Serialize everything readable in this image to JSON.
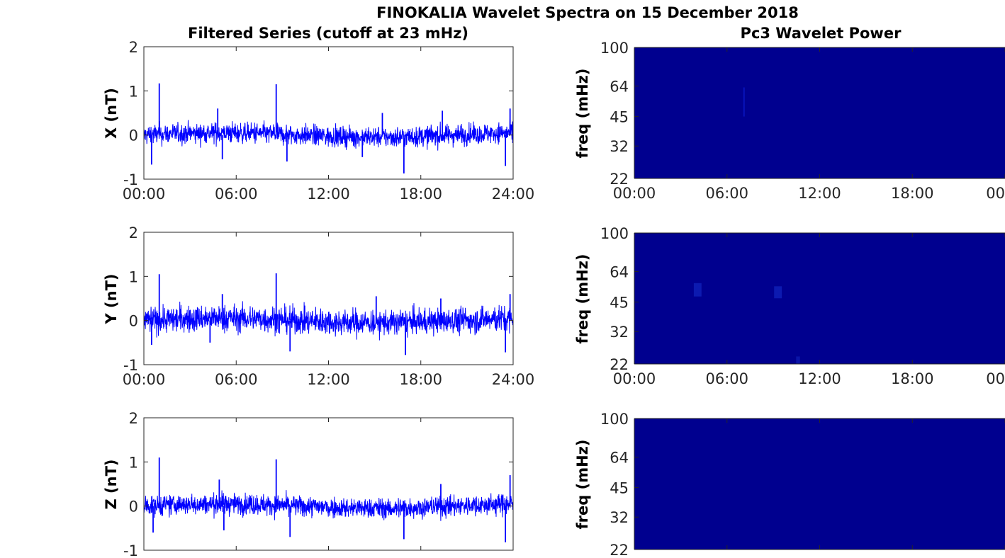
{
  "suptitle": "FINOKALIA Wavelet Spectra on 15 December 2018",
  "chart_data": [
    {
      "type": "line",
      "title": "Filtered Series (cutoff at 23 mHz)",
      "xlabel": "",
      "ylabel": "X (nT)",
      "ylim": [
        -1,
        2
      ],
      "yticks": [
        "-1",
        "0",
        "1",
        "2"
      ],
      "xticks": [
        "00:00",
        "06:00",
        "12:00",
        "18:00",
        "24:00"
      ],
      "xlim_hours": [
        0,
        24
      ],
      "color": "#0000ff",
      "noise_amplitude": 0.25,
      "spikes": [
        {
          "x": 1.0,
          "y": 1.17
        },
        {
          "x": 8.6,
          "y": 1.15
        },
        {
          "x": 4.8,
          "y": 0.6
        },
        {
          "x": 15.5,
          "y": 0.5
        },
        {
          "x": 19.4,
          "y": 0.55
        },
        {
          "x": 23.8,
          "y": 0.6
        },
        {
          "x": 0.5,
          "y": -0.67
        },
        {
          "x": 16.9,
          "y": -0.87
        },
        {
          "x": 23.5,
          "y": -0.7
        },
        {
          "x": 9.3,
          "y": -0.6
        },
        {
          "x": 5.1,
          "y": -0.55
        },
        {
          "x": 14.2,
          "y": -0.5
        }
      ]
    },
    {
      "type": "line",
      "title": "",
      "xlabel": "",
      "ylabel": "Y (nT)",
      "ylim": [
        -1,
        2
      ],
      "yticks": [
        "-1",
        "0",
        "1",
        "2"
      ],
      "xticks": [
        "00:00",
        "06:00",
        "12:00",
        "18:00",
        "24:00"
      ],
      "xlim_hours": [
        0,
        24
      ],
      "color": "#0000ff",
      "noise_amplitude": 0.32,
      "spikes": [
        {
          "x": 1.0,
          "y": 1.05
        },
        {
          "x": 8.6,
          "y": 1.07
        },
        {
          "x": 5.1,
          "y": 0.6
        },
        {
          "x": 15.1,
          "y": 0.55
        },
        {
          "x": 19.3,
          "y": 0.5
        },
        {
          "x": 23.8,
          "y": 0.6
        },
        {
          "x": 0.5,
          "y": -0.55
        },
        {
          "x": 17.0,
          "y": -0.78
        },
        {
          "x": 23.5,
          "y": -0.72
        },
        {
          "x": 9.5,
          "y": -0.7
        },
        {
          "x": 4.3,
          "y": -0.5
        }
      ]
    },
    {
      "type": "line",
      "title": "",
      "xlabel": "",
      "ylabel": "Z (nT)",
      "ylim": [
        -1,
        2
      ],
      "yticks": [
        "-1",
        "0",
        "1",
        "2"
      ],
      "xticks": [],
      "xlim_hours": [
        0,
        24
      ],
      "color": "#0000ff",
      "noise_amplitude": 0.25,
      "spikes": [
        {
          "x": 1.0,
          "y": 1.1
        },
        {
          "x": 8.6,
          "y": 1.06
        },
        {
          "x": 4.9,
          "y": 0.6
        },
        {
          "x": 19.3,
          "y": 0.5
        },
        {
          "x": 23.8,
          "y": 0.7
        },
        {
          "x": 0.6,
          "y": -0.6
        },
        {
          "x": 16.9,
          "y": -0.75
        },
        {
          "x": 23.5,
          "y": -0.82
        },
        {
          "x": 9.5,
          "y": -0.7
        },
        {
          "x": 5.2,
          "y": -0.55
        }
      ]
    },
    {
      "type": "heatmap",
      "title": "Pc3 Wavelet Power",
      "xlabel": "",
      "ylabel": "freq (mHz)",
      "yscale": "log",
      "ylim_mHz": [
        22,
        100
      ],
      "yticks": [
        100,
        64,
        45,
        32,
        22
      ],
      "xticks": [
        "00:00",
        "06:00",
        "12:00",
        "18:00",
        "00"
      ],
      "xlim_hours": [
        0,
        24
      ],
      "background_color": "#00008f",
      "features": [
        {
          "x": 7.1,
          "f": 55,
          "w_hours": 0.06,
          "f_low": 45,
          "f_high": 63,
          "color": "#0a18c8"
        }
      ]
    },
    {
      "type": "heatmap",
      "title": "",
      "xlabel": "",
      "ylabel": "freq (mHz)",
      "yscale": "log",
      "ylim_mHz": [
        22,
        100
      ],
      "yticks": [
        100,
        64,
        45,
        32,
        22
      ],
      "xticks": [
        "00:00",
        "06:00",
        "12:00",
        "18:00",
        "00"
      ],
      "xlim_hours": [
        0,
        24
      ],
      "background_color": "#00008f",
      "features": [
        {
          "x": 4.1,
          "w_hours": 0.5,
          "f_low": 48,
          "f_high": 56,
          "color": "#0c1ab0"
        },
        {
          "x": 9.3,
          "w_hours": 0.5,
          "f_low": 47,
          "f_high": 54,
          "color": "#0c1ab0"
        },
        {
          "x": 10.6,
          "w_hours": 0.25,
          "f_low": 22,
          "f_high": 24,
          "color": "#0a14a8"
        }
      ]
    },
    {
      "type": "heatmap",
      "title": "",
      "xlabel": "",
      "ylabel": "freq (mHz)",
      "yscale": "log",
      "ylim_mHz": [
        22,
        100
      ],
      "yticks": [
        100,
        64,
        45,
        32,
        22
      ],
      "xticks": [],
      "xlim_hours": [
        0,
        24
      ],
      "background_color": "#00008f",
      "features": []
    }
  ]
}
